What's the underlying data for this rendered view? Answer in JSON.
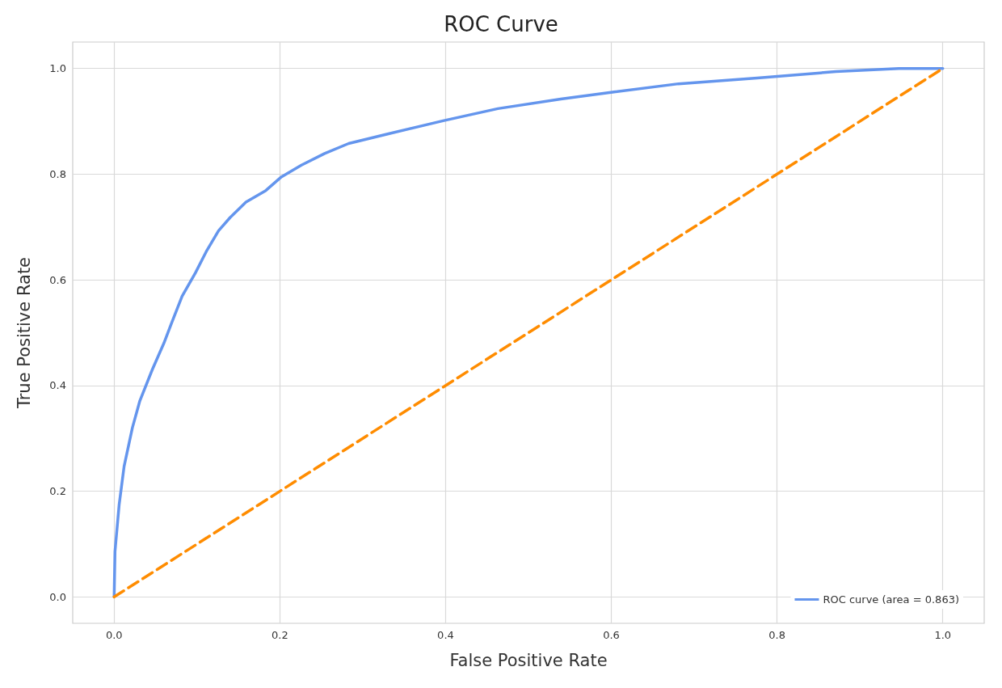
{
  "chart_data": {
    "type": "line",
    "title": "ROC Curve",
    "xlabel": "False Positive Rate",
    "ylabel": "True Positive Rate",
    "xlim": [
      -0.05,
      1.05
    ],
    "ylim": [
      -0.05,
      1.05
    ],
    "xticks": [
      {
        "value": 0,
        "label": "0.0"
      },
      {
        "value": 0.2,
        "label": "0.2"
      },
      {
        "value": 0.4,
        "label": "0.4"
      },
      {
        "value": 0.6,
        "label": "0.6"
      },
      {
        "value": 0.8,
        "label": "0.8"
      },
      {
        "value": 1,
        "label": "1.0"
      }
    ],
    "yticks": [
      {
        "value": 0,
        "label": "0.0"
      },
      {
        "value": 0.2,
        "label": "0.2"
      },
      {
        "value": 0.4,
        "label": "0.4"
      },
      {
        "value": 0.6,
        "label": "0.6"
      },
      {
        "value": 0.8,
        "label": "0.8"
      },
      {
        "value": 1,
        "label": "1.0"
      }
    ],
    "grid": true,
    "legend": "bottom right",
    "marker": "none",
    "series": [
      {
        "name": "ROC curve (area = 0.863)",
        "color": "#6495ed",
        "line_style": "solid",
        "x": [
          0,
          0.001,
          0.006,
          0.012,
          0.022,
          0.031,
          0.046,
          0.06,
          0.069,
          0.082,
          0.098,
          0.112,
          0.126,
          0.14,
          0.159,
          0.183,
          0.202,
          0.226,
          0.254,
          0.283,
          0.33,
          0.397,
          0.463,
          0.539,
          0.605,
          0.681,
          0.776,
          0.871,
          0.947,
          1
        ],
        "values": [
          0,
          0.086,
          0.174,
          0.247,
          0.32,
          0.371,
          0.43,
          0.48,
          0.517,
          0.569,
          0.613,
          0.656,
          0.693,
          0.718,
          0.747,
          0.769,
          0.795,
          0.817,
          0.839,
          0.858,
          0.876,
          0.901,
          0.924,
          0.942,
          0.956,
          0.971,
          0.982,
          0.994,
          1,
          1
        ]
      },
      {
        "color": "#ff8c00",
        "line_style": "dashed",
        "x": [
          0,
          1
        ],
        "values": [
          0,
          1
        ]
      }
    ]
  }
}
